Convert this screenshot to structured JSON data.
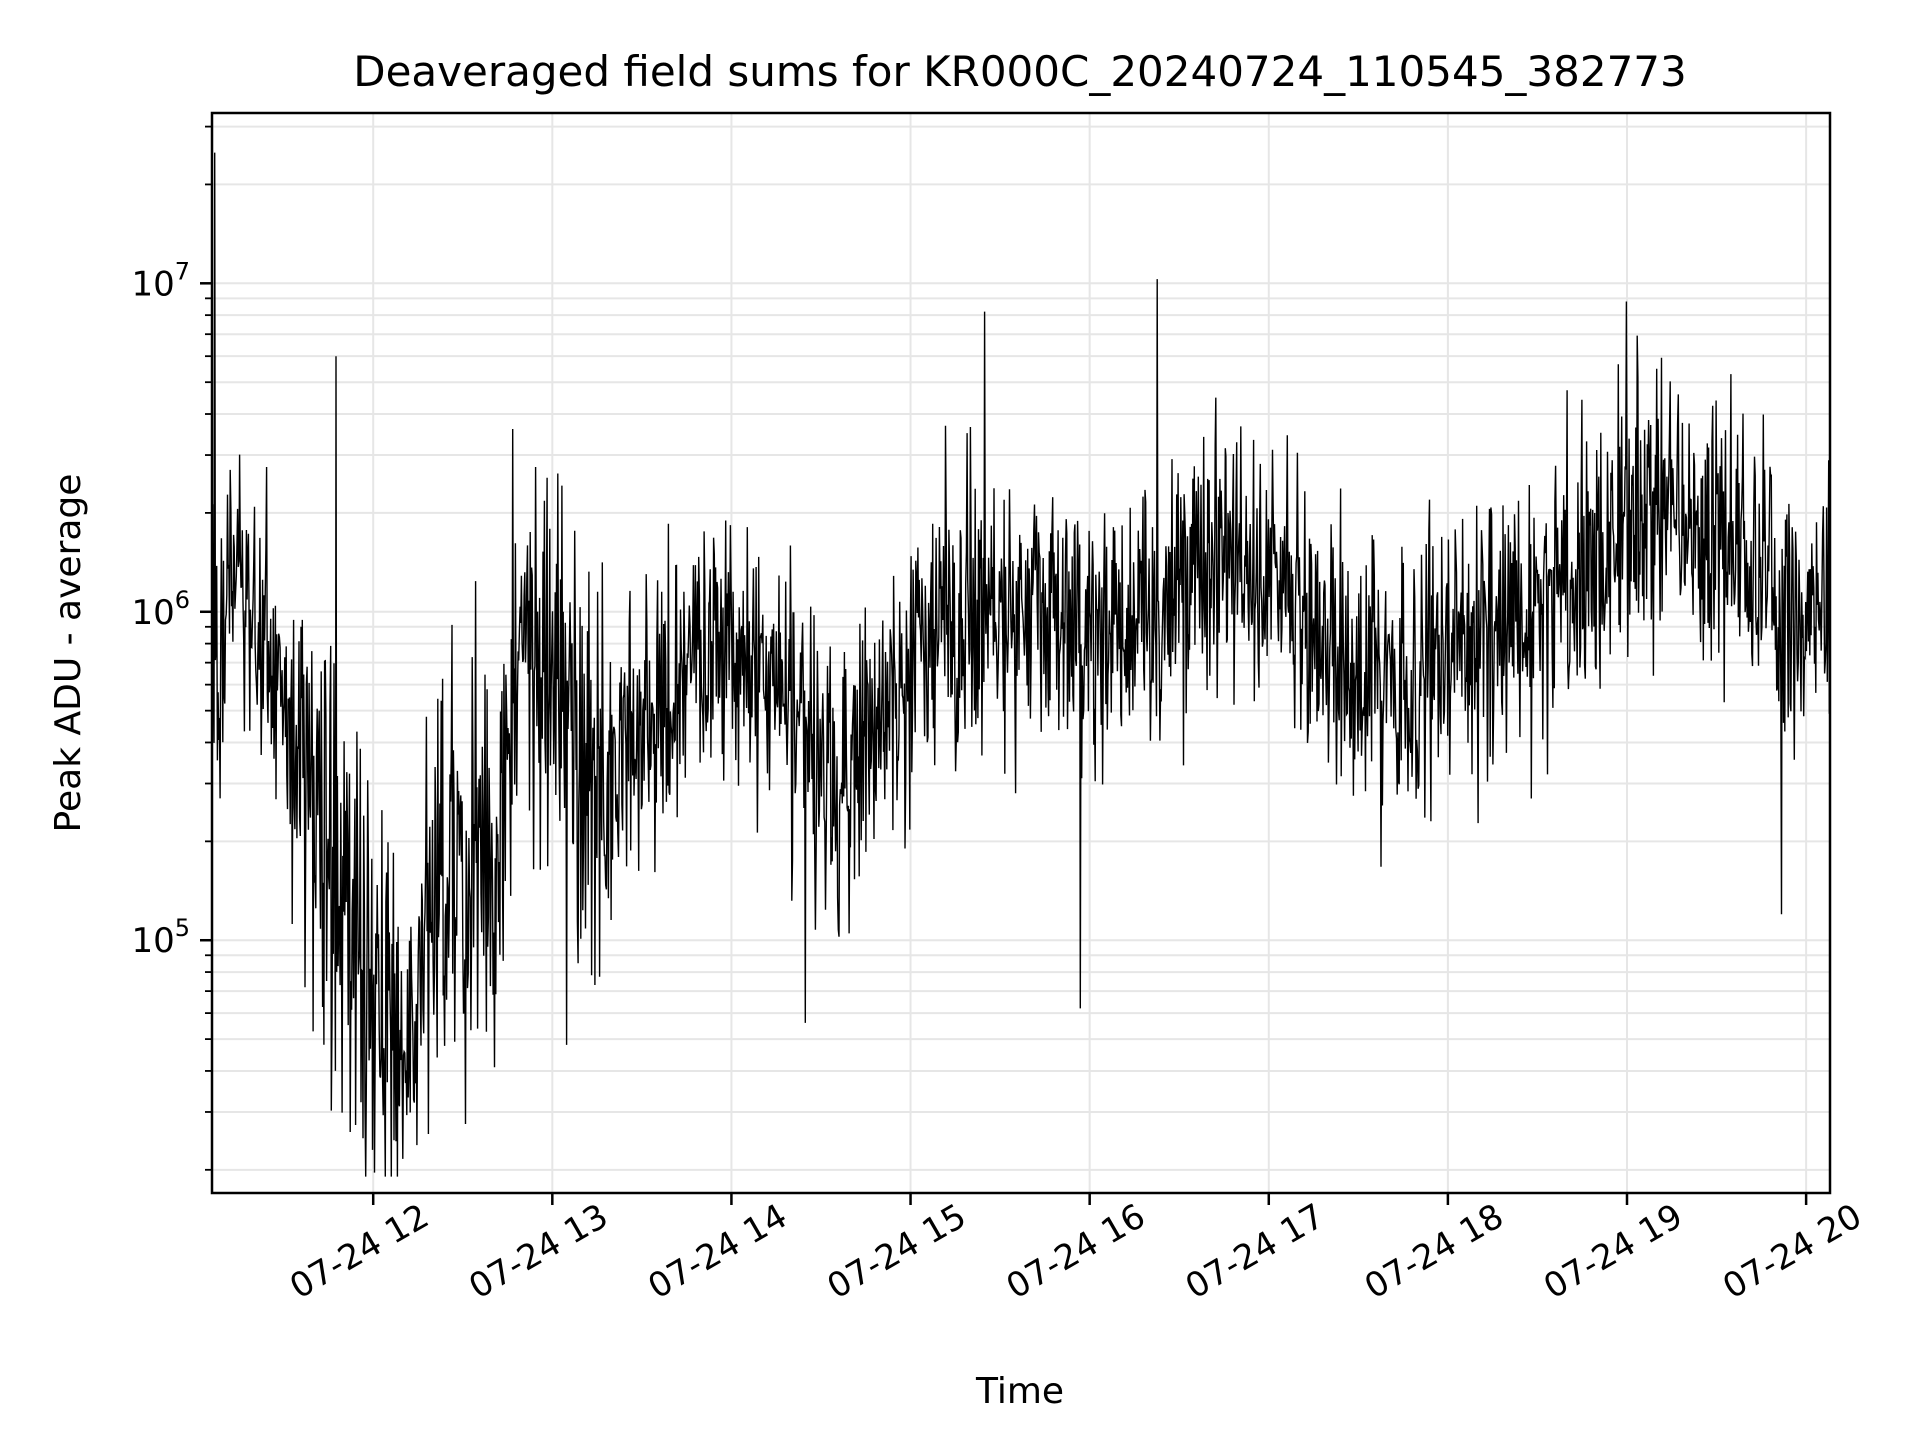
{
  "chart_data": {
    "type": "line",
    "title": "Deaveraged field sums for KR000C_20240724_110545_382773",
    "xlabel": "Time",
    "ylabel": "Peak ADU - average",
    "yscale": "log",
    "grid": true,
    "line_color": "#000000",
    "grid_color": "#e6e6e6",
    "x_ticks": [
      "07-24 12",
      "07-24 13",
      "07-24 14",
      "07-24 15",
      "07-24 16",
      "07-24 17",
      "07-24 18",
      "07-24 19",
      "07-24 20"
    ],
    "y_ticks": [
      {
        "base": "10",
        "exp": "5",
        "value": 100000
      },
      {
        "base": "10",
        "exp": "6",
        "value": 1000000
      },
      {
        "base": "10",
        "exp": "7",
        "value": 10000000
      }
    ],
    "xlim": [
      "2024-07-24 11:06",
      "2024-07-24 20:08"
    ],
    "ylim": [
      17000,
      33000000
    ],
    "series": [
      {
        "x": [
          "2024-07-24 11:06",
          "2024-07-24 11:15",
          "2024-07-24 11:20",
          "2024-07-24 11:30",
          "2024-07-24 11:40",
          "2024-07-24 11:50",
          "2024-07-24 12:00",
          "2024-07-24 12:10",
          "2024-07-24 12:20",
          "2024-07-24 12:30",
          "2024-07-24 12:40",
          "2024-07-24 12:50",
          "2024-07-24 13:00",
          "2024-07-24 13:15",
          "2024-07-24 13:30",
          "2024-07-24 13:45",
          "2024-07-24 14:00",
          "2024-07-24 14:15",
          "2024-07-24 14:30",
          "2024-07-24 14:45",
          "2024-07-24 15:00",
          "2024-07-24 15:15",
          "2024-07-24 15:30",
          "2024-07-24 15:45",
          "2024-07-24 16:00",
          "2024-07-24 16:15",
          "2024-07-24 16:30",
          "2024-07-24 16:45",
          "2024-07-24 17:00",
          "2024-07-24 17:15",
          "2024-07-24 17:30",
          "2024-07-24 17:45",
          "2024-07-24 18:00",
          "2024-07-24 18:15",
          "2024-07-24 18:30",
          "2024-07-24 18:45",
          "2024-07-24 19:00",
          "2024-07-24 19:15",
          "2024-07-24 19:30",
          "2024-07-24 19:45",
          "2024-07-24 20:00",
          "2024-07-24 20:08"
        ],
        "y": [
          500000,
          1800000,
          900000,
          500000,
          250000,
          150000,
          60000,
          50000,
          120000,
          180000,
          150000,
          1200000,
          500000,
          300000,
          400000,
          700000,
          750000,
          650000,
          350000,
          400000,
          700000,
          900000,
          1100000,
          1000000,
          900000,
          800000,
          1400000,
          1500000,
          1200000,
          1000000,
          700000,
          600000,
          700000,
          900000,
          1100000,
          1300000,
          1800000,
          2000000,
          1600000,
          1400000,
          800000,
          1300000
        ],
        "peaks": [
          {
            "x": "2024-07-24 11:07",
            "y": 25000000
          },
          {
            "x": "2024-07-24 11:48",
            "y": 6000000
          },
          {
            "x": "2024-07-24 12:47",
            "y": 3600000
          },
          {
            "x": "2024-07-24 15:25",
            "y": 8200000
          },
          {
            "x": "2024-07-24 16:23",
            "y": 10300000
          },
          {
            "x": "2024-07-24 19:00",
            "y": 8800000
          }
        ],
        "troughs": [
          {
            "x": "2024-07-24 12:00",
            "y": 23000
          },
          {
            "x": "2024-07-24 13:05",
            "y": 48000
          },
          {
            "x": "2024-07-24 14:25",
            "y": 56000
          },
          {
            "x": "2024-07-24 15:57",
            "y": 62000
          },
          {
            "x": "2024-07-24 19:52",
            "y": 120000
          }
        ]
      }
    ]
  }
}
